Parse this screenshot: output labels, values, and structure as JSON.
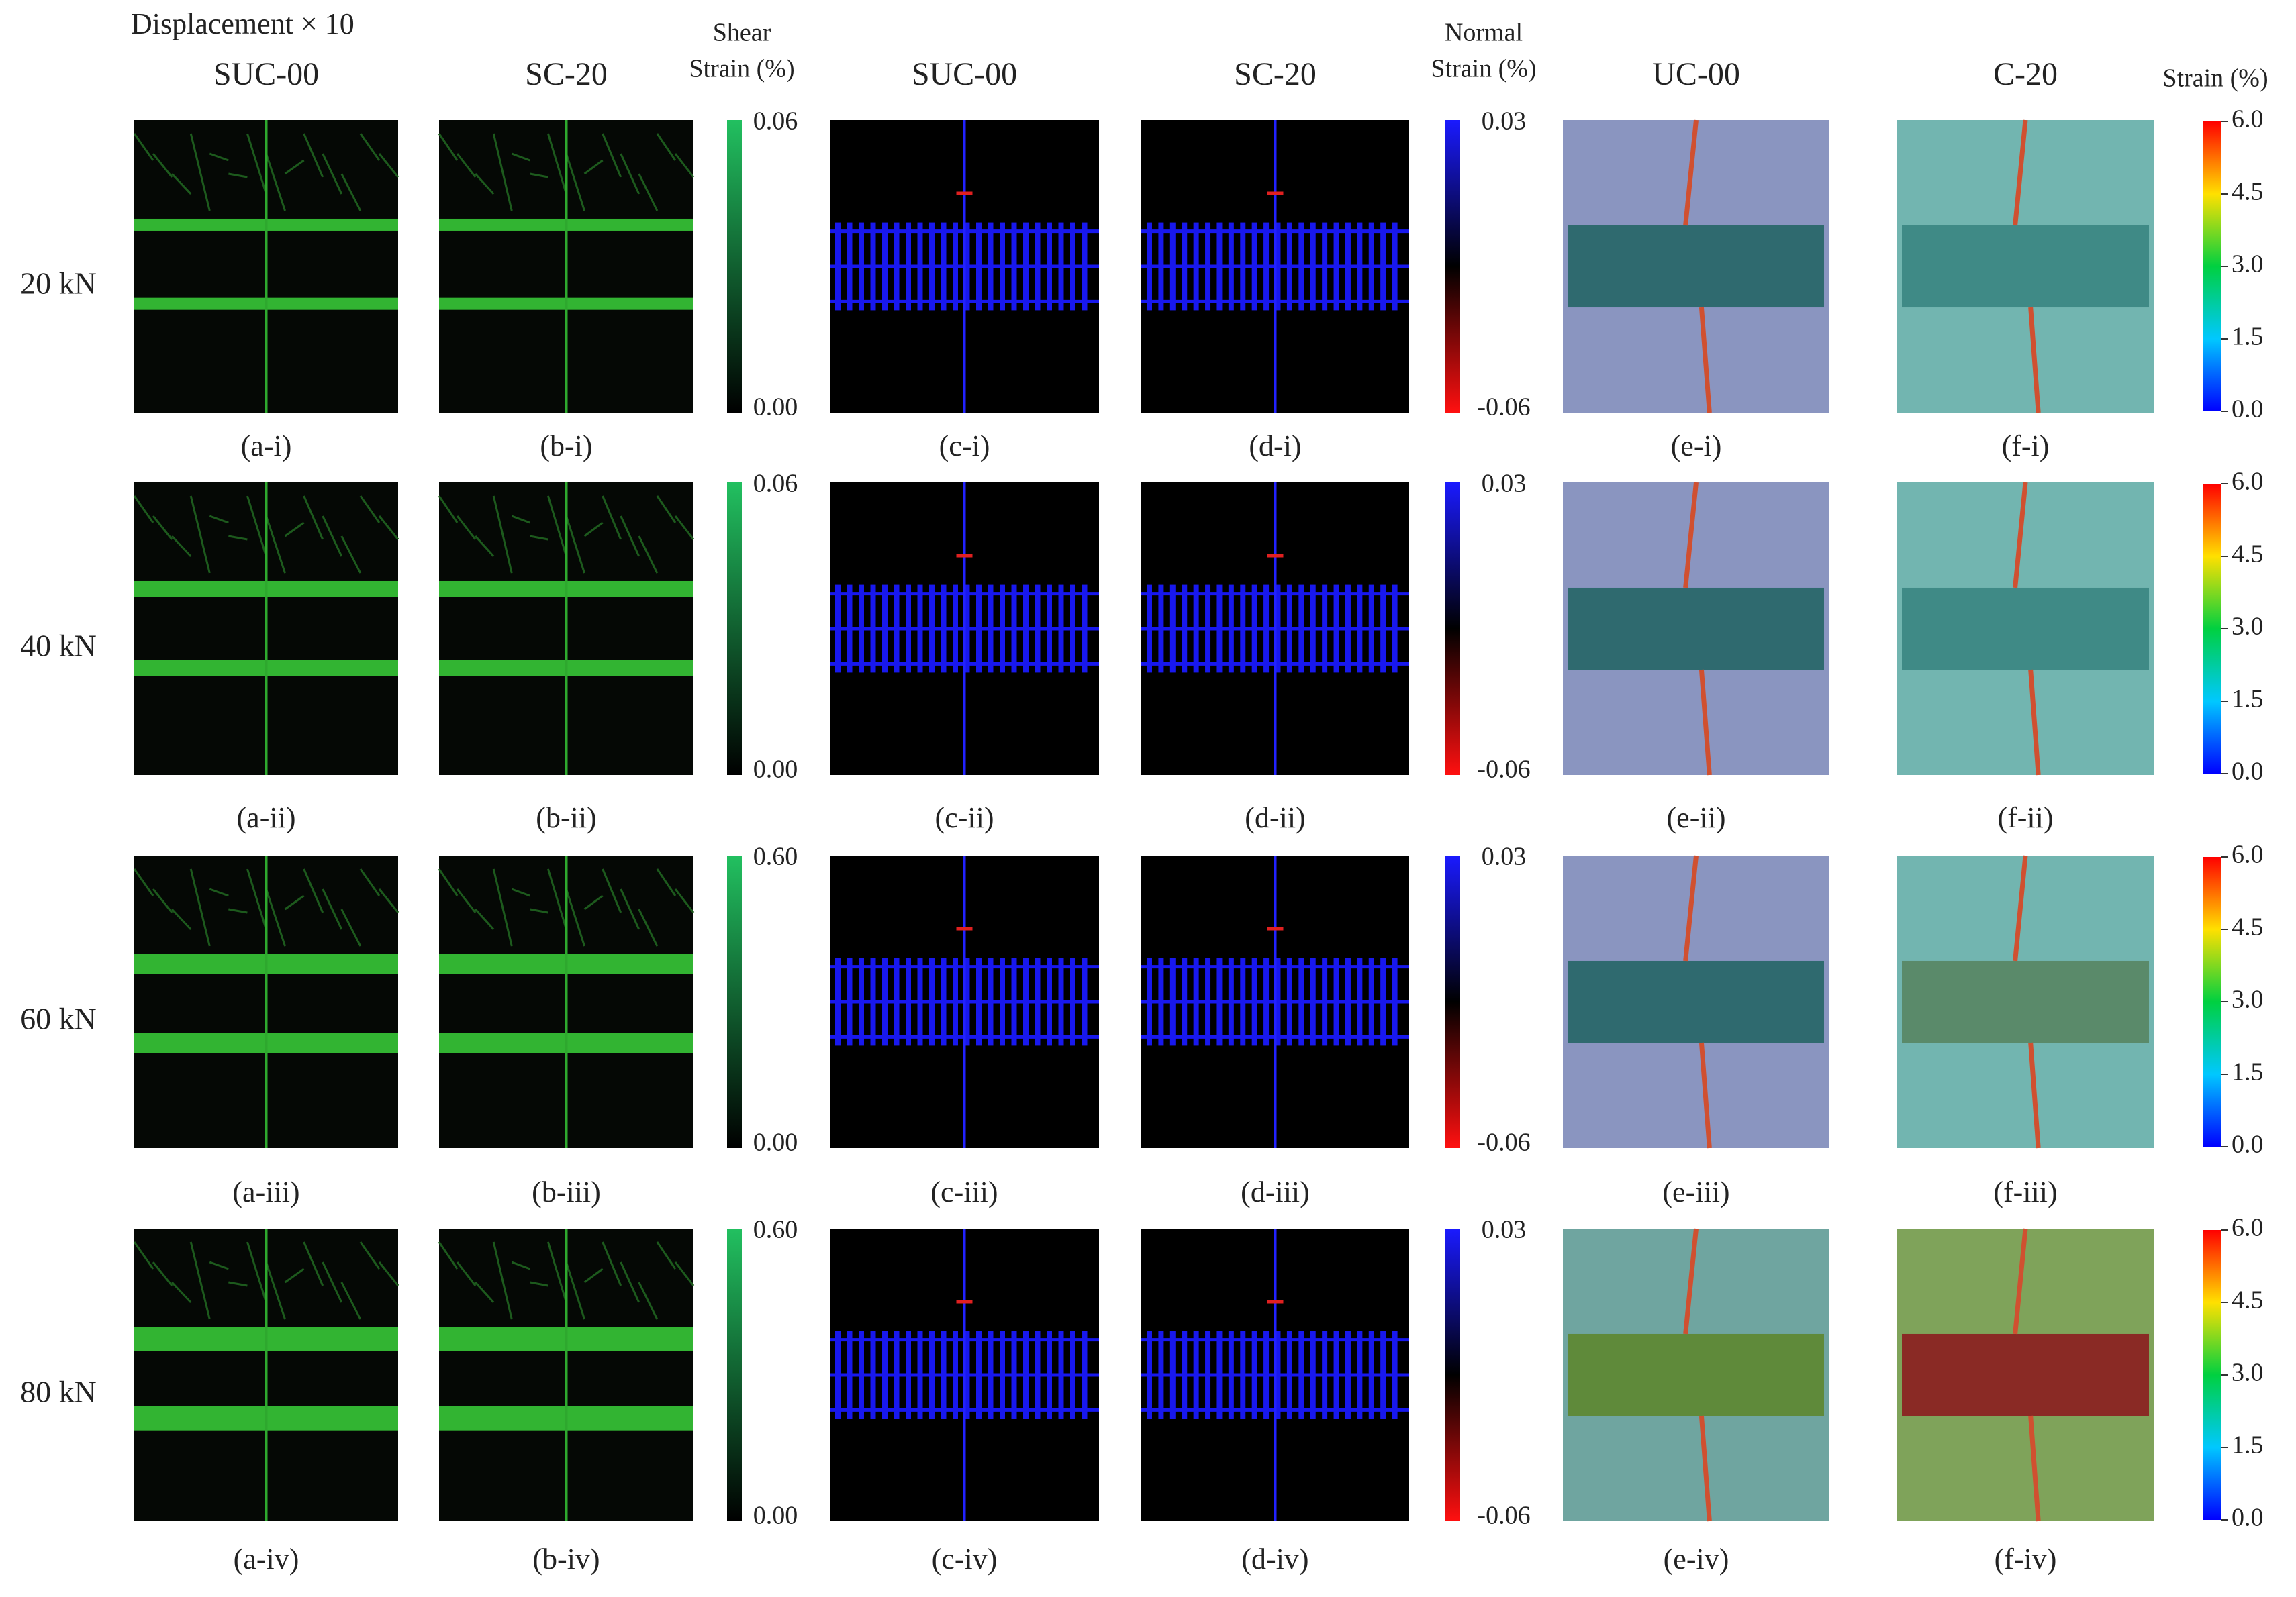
{
  "title": "Displacement × 10",
  "columns": [
    "SUC-00",
    "SC-20",
    "SUC-00",
    "SC-20",
    "UC-00",
    "C-20"
  ],
  "colorbar_titles": {
    "shear": [
      "Shear",
      "Strain (%)"
    ],
    "normal": [
      "Normal",
      "Strain (%)"
    ],
    "strain": [
      "Strain (%)"
    ]
  },
  "rows": [
    {
      "load": "20 kN",
      "shear_ticks": [
        "0.06",
        "0.00"
      ],
      "normal_ticks": [
        "0.03",
        "-0.06"
      ],
      "strain_ticks": [
        "6.0",
        "4.5",
        "3.0",
        "1.5",
        "0.0"
      ],
      "captions": [
        "(a-i)",
        "(b-i)",
        "(c-i)",
        "(d-i)",
        "(e-i)",
        "(f-i)"
      ]
    },
    {
      "load": "40 kN",
      "shear_ticks": [
        "0.06",
        "0.00"
      ],
      "normal_ticks": [
        "0.03",
        "-0.06"
      ],
      "strain_ticks": [
        "6.0",
        "4.5",
        "3.0",
        "1.5",
        "0.0"
      ],
      "captions": [
        "(a-ii)",
        "(b-ii)",
        "(c-ii)",
        "(d-ii)",
        "(e-ii)",
        "(f-ii)"
      ]
    },
    {
      "load": "60 kN",
      "shear_ticks": [
        "0.60",
        "0.00"
      ],
      "normal_ticks": [
        "0.03",
        "-0.06"
      ],
      "strain_ticks": [
        "6.0",
        "4.5",
        "3.0",
        "1.5",
        "0.0"
      ],
      "captions": [
        "(a-iii)",
        "(b-iii)",
        "(c-iii)",
        "(d-iii)",
        "(e-iii)",
        "(f-iii)"
      ]
    },
    {
      "load": "80 kN",
      "shear_ticks": [
        "0.60",
        "0.00"
      ],
      "normal_ticks": [
        "0.03",
        "-0.06"
      ],
      "strain_ticks": [
        "6.0",
        "4.5",
        "3.0",
        "1.5",
        "0.0"
      ],
      "captions": [
        "(a-iv)",
        "(b-iv)",
        "(c-iv)",
        "(d-iv)",
        "(e-iv)",
        "(f-iv)"
      ]
    }
  ]
}
